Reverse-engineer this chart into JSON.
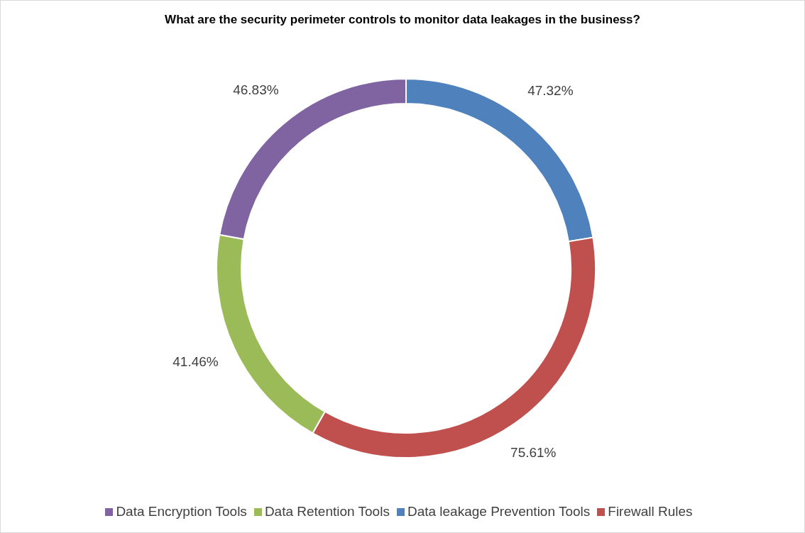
{
  "chart_data": {
    "type": "donut",
    "title": "What are the security perimeter controls to monitor data leakages in the business?",
    "categories": [
      "Data leakage Prevention Tools",
      "Firewall Rules",
      "Data Retention Tools",
      "Data Encryption Tools"
    ],
    "values": [
      47.32,
      75.61,
      41.46,
      46.83
    ],
    "value_labels": [
      "47.32%",
      "75.61%",
      "41.46%",
      "46.83%"
    ],
    "colors": [
      "#4f81bd",
      "#c0504d",
      "#9bbb59",
      "#8064a2"
    ],
    "legend": "bottom"
  }
}
